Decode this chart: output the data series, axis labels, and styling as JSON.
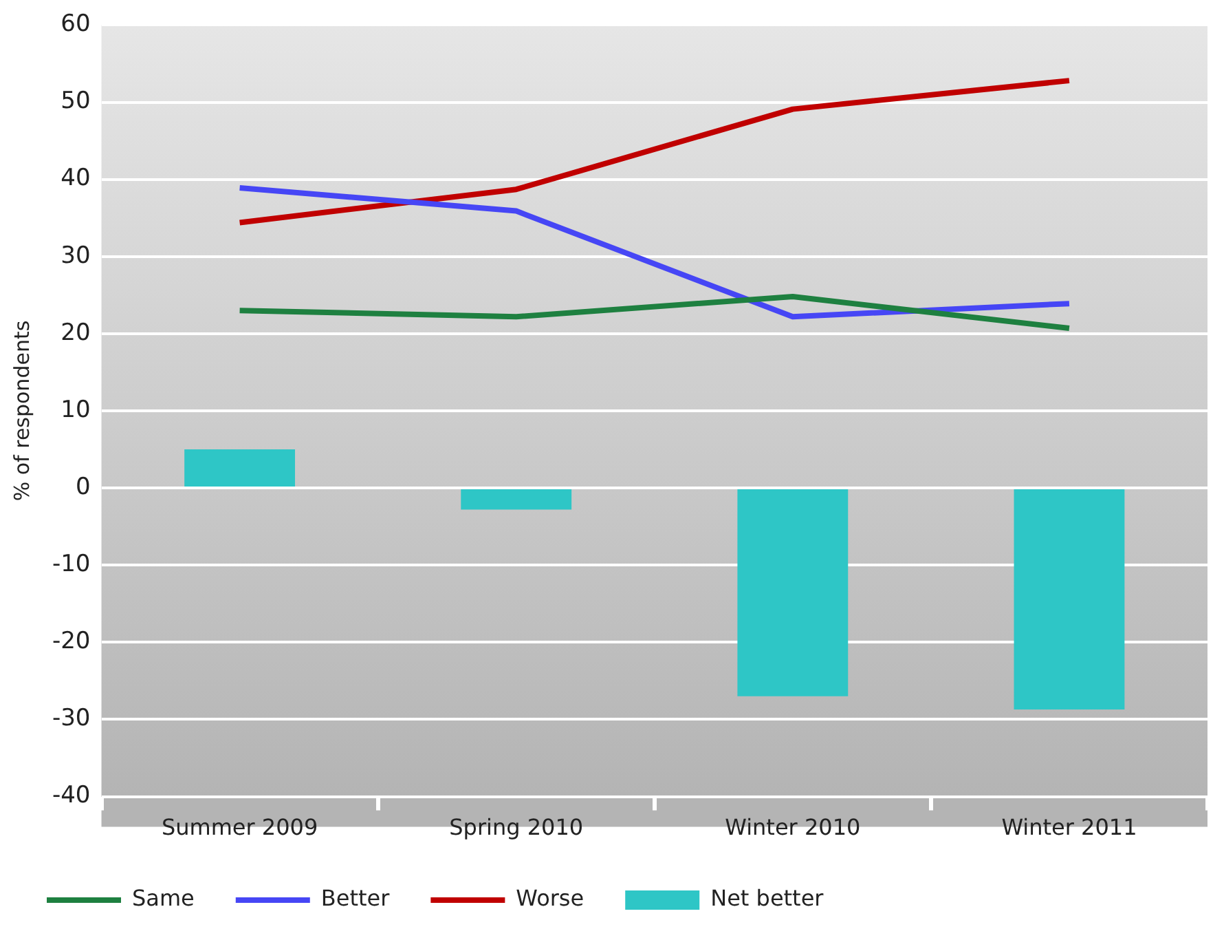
{
  "chart_data": {
    "type": "line",
    "ylabel": "% of respondents",
    "categories": [
      "Summer 2009",
      "Spring 2010",
      "Winter 2010",
      "Winter 2011"
    ],
    "series": [
      {
        "name": "Same",
        "color": "#1e8040",
        "values": [
          23,
          22.2,
          24.8,
          20.7
        ]
      },
      {
        "name": "Better",
        "color": "#4646f5",
        "values": [
          38.9,
          35.9,
          22.2,
          23.9
        ]
      },
      {
        "name": "Worse",
        "color": "#c00000",
        "values": [
          34.4,
          38.7,
          49.1,
          52.8
        ]
      },
      {
        "name": "Net better",
        "type": "bar",
        "color": "#2ec6c6",
        "values": [
          5,
          -2.8,
          -27,
          -28.7
        ]
      }
    ],
    "ylim": [
      -40,
      60
    ],
    "yticks": [
      -40,
      -30,
      -20,
      -10,
      0,
      10,
      20,
      30,
      40,
      50,
      60
    ],
    "grid": "y",
    "legend": "bottom left",
    "marker": "none",
    "line_style": "solid"
  }
}
